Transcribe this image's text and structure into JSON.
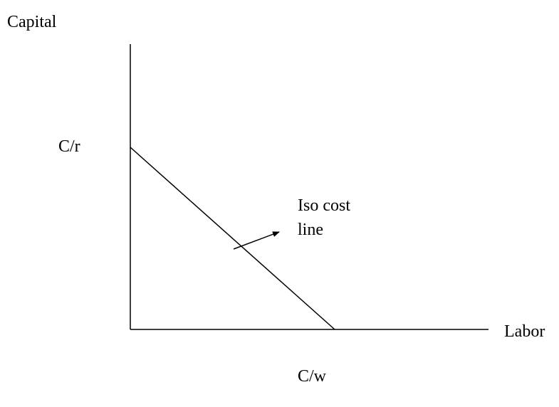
{
  "axes": {
    "y_label": "Capital",
    "x_label": "Labor"
  },
  "intercepts": {
    "y": "C/r",
    "x": "C/w"
  },
  "annotation": {
    "lines": [
      "Iso cost",
      "line"
    ]
  }
}
